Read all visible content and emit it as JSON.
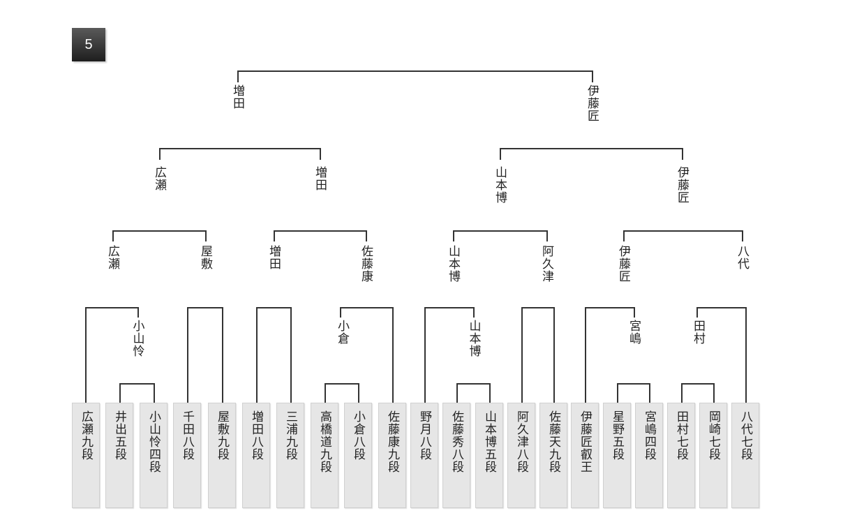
{
  "round_badge": "5",
  "players": [
    "広瀬九段",
    "井出五段",
    "小山怜四段",
    "千田八段",
    "屋敷九段",
    "増田八段",
    "三浦九段",
    "高橋道九段",
    "小倉八段",
    "佐藤康九段",
    "野月八段",
    "佐藤秀八段",
    "山本博五段",
    "阿久津八段",
    "佐藤天九段",
    "伊藤匠叡王",
    "星野五段",
    "宮嶋四段",
    "田村七段",
    "岡崎七段",
    "八代七段"
  ],
  "results": {
    "round1": [
      "小山怜",
      "小倉",
      "山本博",
      "宮嶋",
      "田村"
    ],
    "round2": [
      "広瀬",
      "屋敷",
      "増田",
      "佐藤康",
      "山本博",
      "阿久津",
      "伊藤匠",
      "八代"
    ],
    "quarterfinal": [
      "広瀬",
      "増田",
      "山本博",
      "伊藤匠"
    ],
    "semifinal": [
      "増田",
      "伊藤匠"
    ]
  }
}
